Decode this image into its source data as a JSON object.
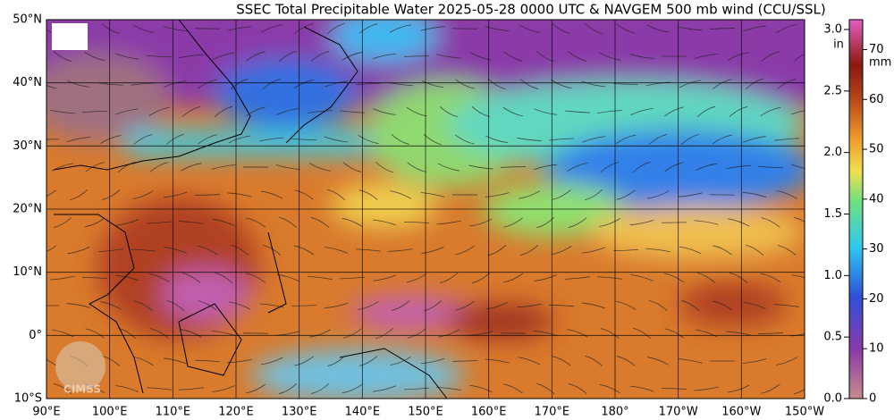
{
  "title": "SSEC Total Precipitable Water  2025-05-28 0000 UTC & NAVGEM 500 mb wind (CCU/SSL)",
  "map": {
    "lon_lim": [
      90,
      210
    ],
    "lat_lim": [
      -10,
      50
    ],
    "lat_labels": [
      {
        "value": -10,
        "label": "10°S"
      },
      {
        "value": 0,
        "label": "0°"
      },
      {
        "value": 10,
        "label": "10°N"
      },
      {
        "value": 20,
        "label": "20°N"
      },
      {
        "value": 30,
        "label": "30°N"
      },
      {
        "value": 40,
        "label": "40°N"
      },
      {
        "value": 50,
        "label": "50°N"
      }
    ],
    "lon_labels": [
      {
        "value": 90,
        "label": "90°E"
      },
      {
        "value": 100,
        "label": "100°E"
      },
      {
        "value": 110,
        "label": "110°E"
      },
      {
        "value": 120,
        "label": "120°E"
      },
      {
        "value": 130,
        "label": "130°E"
      },
      {
        "value": 140,
        "label": "140°E"
      },
      {
        "value": 150,
        "label": "150°E"
      },
      {
        "value": 160,
        "label": "160°E"
      },
      {
        "value": 170,
        "label": "170°E"
      },
      {
        "value": 180,
        "label": "180°"
      },
      {
        "value": 190,
        "label": "170°W"
      },
      {
        "value": 200,
        "label": "160°W"
      },
      {
        "value": 210,
        "label": "150°W"
      }
    ],
    "logo_text": "CIMSS"
  },
  "colorbar": {
    "in_unit": "in",
    "mm_unit": "mm",
    "in_lim": [
      0,
      3.08
    ],
    "in_ticks": [
      {
        "value": 0,
        "label": "0.0"
      },
      {
        "value": 0.5,
        "label": "0.5"
      },
      {
        "value": 1,
        "label": "1.0"
      },
      {
        "value": 1.5,
        "label": "1.5"
      },
      {
        "value": 2,
        "label": "2.0"
      },
      {
        "value": 2.5,
        "label": "2.5"
      },
      {
        "value": 3,
        "label": "3.0"
      }
    ],
    "mm_lim": [
      0,
      76
    ],
    "mm_ticks": [
      0,
      10,
      20,
      30,
      40,
      50,
      60,
      70
    ]
  }
}
